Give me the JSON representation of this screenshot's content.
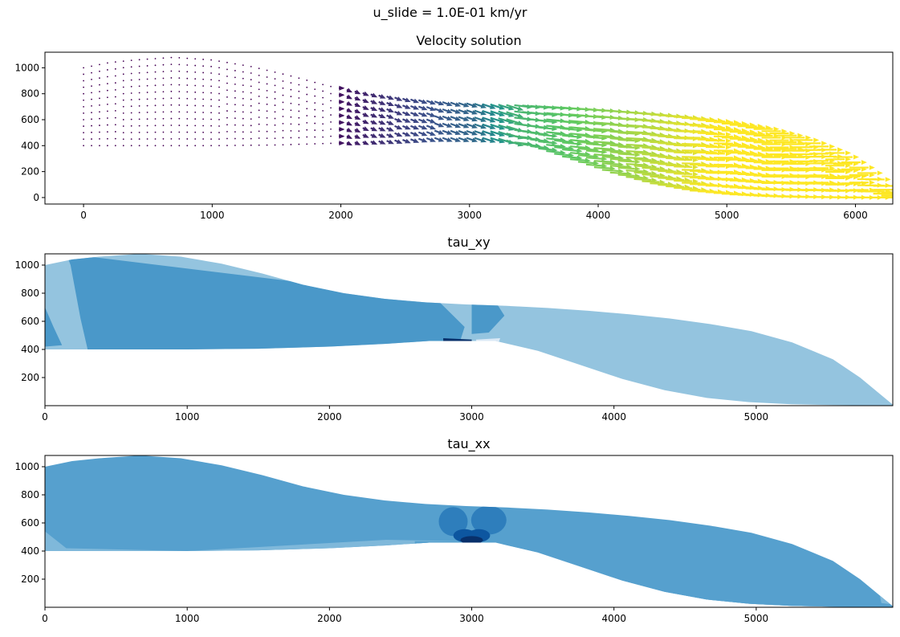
{
  "figure": {
    "suptitle": "u_slide = 1.0E-01 km/yr"
  },
  "chart_data": [
    {
      "type": "quiver",
      "title": "Velocity solution",
      "xlabel": "",
      "ylabel": "",
      "xlim": [
        -300,
        6290
      ],
      "ylim": [
        -50,
        1120
      ],
      "xticks": [
        0,
        1000,
        2000,
        3000,
        4000,
        5000,
        6000
      ],
      "yticks": [
        0,
        200,
        400,
        600,
        800,
        1000
      ],
      "colormap": "viridis",
      "grid": false,
      "ice_body": {
        "surface": [
          [
            0,
            1000
          ],
          [
            200,
            1040
          ],
          [
            400,
            1060
          ],
          [
            700,
            1080
          ],
          [
            1000,
            1060
          ],
          [
            1300,
            1010
          ],
          [
            1600,
            940
          ],
          [
            1900,
            860
          ],
          [
            2200,
            800
          ],
          [
            2500,
            760
          ],
          [
            2800,
            735
          ],
          [
            3100,
            720
          ],
          [
            3400,
            710
          ],
          [
            3700,
            695
          ],
          [
            4000,
            675
          ],
          [
            4300,
            650
          ],
          [
            4600,
            620
          ],
          [
            4900,
            580
          ],
          [
            5200,
            530
          ],
          [
            5500,
            450
          ],
          [
            5800,
            330
          ],
          [
            6000,
            200
          ],
          [
            6250,
            0
          ]
        ],
        "bed_upstream": [
          [
            0,
            400
          ],
          [
            500,
            400
          ],
          [
            1000,
            400
          ],
          [
            1500,
            405
          ],
          [
            2000,
            420
          ],
          [
            2400,
            440
          ],
          [
            2700,
            460
          ],
          [
            3000,
            460
          ]
        ],
        "bed_downstream": [
          [
            3200,
            460
          ],
          [
            3500,
            390
          ],
          [
            3800,
            290
          ],
          [
            4100,
            190
          ],
          [
            4400,
            110
          ],
          [
            4700,
            55
          ],
          [
            5000,
            25
          ],
          [
            5300,
            10
          ],
          [
            5600,
            4
          ],
          [
            6000,
            0
          ]
        ]
      },
      "speed_range": [
        0,
        1
      ]
    },
    {
      "type": "contourf",
      "title": "tau_xy",
      "xlim": [
        0,
        5960
      ],
      "ylim": [
        0,
        1080
      ],
      "xticks": [
        0,
        1000,
        2000,
        3000,
        4000,
        5000
      ],
      "yticks": [
        200,
        400,
        600,
        800,
        1000
      ],
      "colormap": "Blues",
      "levels_colors": [
        "#ffffff",
        "#dbe9f6",
        "#94c4df",
        "#4a98c9",
        "#1764ab",
        "#08306b"
      ],
      "grid": false
    },
    {
      "type": "contourf",
      "title": "tau_xx",
      "xlim": [
        0,
        5960
      ],
      "ylim": [
        0,
        1080
      ],
      "xticks": [
        0,
        1000,
        2000,
        3000,
        4000,
        5000
      ],
      "yticks": [
        200,
        400,
        600,
        800,
        1000
      ],
      "colormap": "Blues",
      "levels_colors": [
        "#ffffff",
        "#7fb8da",
        "#56a0ce",
        "#2e7ebc",
        "#0d56a0",
        "#08306b"
      ],
      "grid": false
    }
  ]
}
